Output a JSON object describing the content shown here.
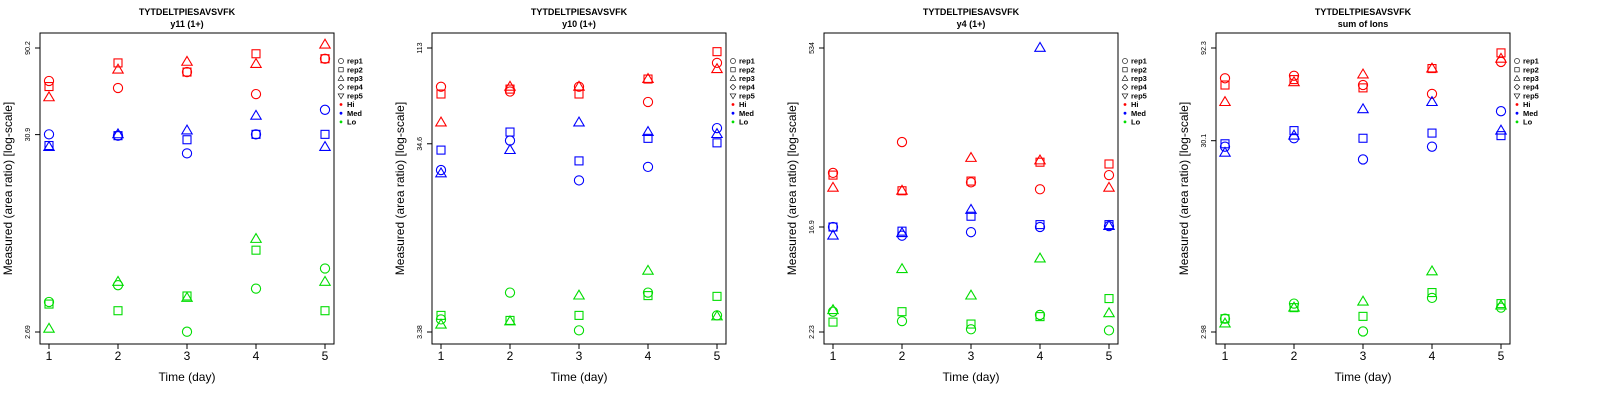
{
  "colors": {
    "Hi": "#ff0000",
    "Med": "#0000ff",
    "Lo": "#00dd00"
  },
  "legend": {
    "replicates": [
      {
        "label": "rep1",
        "shape": "circle"
      },
      {
        "label": "rep2",
        "shape": "square"
      },
      {
        "label": "rep3",
        "shape": "triangle-up"
      },
      {
        "label": "rep4",
        "shape": "diamond"
      },
      {
        "label": "rep5",
        "shape": "triangle-down"
      }
    ],
    "groups": [
      "Hi",
      "Med",
      "Lo"
    ]
  },
  "chart_data": [
    {
      "type": "scatter",
      "title": "TYTDELTPIESAVSVFK",
      "subtitle": "y11 (1+)",
      "xlabel": "Time (day)",
      "ylabel": "Measured (area ratio) [log-scale]",
      "y_scale": "log",
      "ylim": [
        2.69,
        90.2
      ],
      "yticks": [
        "2.69",
        "30.9",
        "90.2"
      ],
      "xticks": [
        1,
        2,
        3,
        4,
        5
      ],
      "legend_position": "right",
      "series": [
        {
          "name": "Hi",
          "shape": "circle",
          "points": [
            [
              1,
              60
            ],
            [
              2,
              55
            ],
            [
              3,
              67
            ],
            [
              4,
              51
            ],
            [
              5,
              79
            ]
          ]
        },
        {
          "name": "Hi",
          "shape": "square",
          "points": [
            [
              1,
              56
            ],
            [
              2,
              75
            ],
            [
              3,
              67
            ],
            [
              4,
              84
            ],
            [
              5,
              79
            ]
          ]
        },
        {
          "name": "Hi",
          "shape": "triangle-up",
          "points": [
            [
              1,
              49
            ],
            [
              2,
              69
            ],
            [
              3,
              76
            ],
            [
              4,
              74
            ],
            [
              5,
              94
            ]
          ]
        },
        {
          "name": "Med",
          "shape": "circle",
          "points": [
            [
              1,
              31
            ],
            [
              2,
              30.5
            ],
            [
              3,
              24.5
            ],
            [
              4,
              31
            ],
            [
              5,
              42
            ]
          ]
        },
        {
          "name": "Med",
          "shape": "square",
          "points": [
            [
              1,
              27
            ],
            [
              2,
              30.5
            ],
            [
              3,
              29
            ],
            [
              4,
              31
            ],
            [
              5,
              31
            ]
          ]
        },
        {
          "name": "Med",
          "shape": "triangle-up",
          "points": [
            [
              1,
              26.5
            ],
            [
              2,
              31
            ],
            [
              3,
              32.5
            ],
            [
              4,
              39
            ],
            [
              5,
              26.5
            ]
          ]
        },
        {
          "name": "Lo",
          "shape": "circle",
          "points": [
            [
              1,
              3.9
            ],
            [
              2,
              4.8
            ],
            [
              3,
              2.7
            ],
            [
              4,
              4.6
            ],
            [
              5,
              5.9
            ]
          ]
        },
        {
          "name": "Lo",
          "shape": "square",
          "points": [
            [
              1,
              3.8
            ],
            [
              2,
              3.5
            ],
            [
              3,
              4.2
            ],
            [
              4,
              7.4
            ],
            [
              5,
              3.5
            ]
          ]
        },
        {
          "name": "Lo",
          "shape": "triangle-up",
          "points": [
            [
              1,
              2.8
            ],
            [
              2,
              5.0
            ],
            [
              3,
              4.1
            ],
            [
              4,
              8.5
            ],
            [
              5,
              5.0
            ]
          ]
        }
      ]
    },
    {
      "type": "scatter",
      "title": "TYTDELTPIESAVSVFK",
      "subtitle": "y10 (1+)",
      "xlabel": "Time (day)",
      "ylabel": "Measured (area ratio) [log-scale]",
      "y_scale": "log",
      "ylim": [
        3.38,
        113
      ],
      "yticks": [
        "3.38",
        "34.6",
        "113"
      ],
      "xticks": [
        1,
        2,
        3,
        4,
        5
      ],
      "legend_position": "right",
      "series": [
        {
          "name": "Hi",
          "shape": "circle",
          "points": [
            [
              1,
              70
            ],
            [
              2,
              66
            ],
            [
              3,
              70
            ],
            [
              4,
              58
            ],
            [
              5,
              94
            ]
          ]
        },
        {
          "name": "Hi",
          "shape": "square",
          "points": [
            [
              1,
              64
            ],
            [
              2,
              68
            ],
            [
              3,
              64
            ],
            [
              4,
              77
            ],
            [
              5,
              108
            ]
          ]
        },
        {
          "name": "Hi",
          "shape": "triangle-up",
          "points": [
            [
              1,
              45
            ],
            [
              2,
              70
            ],
            [
              3,
              70
            ],
            [
              4,
              77
            ],
            [
              5,
              87
            ]
          ]
        },
        {
          "name": "Med",
          "shape": "circle",
          "points": [
            [
              1,
              25
            ],
            [
              2,
              36
            ],
            [
              3,
              22
            ],
            [
              4,
              26
            ],
            [
              5,
              42
            ]
          ]
        },
        {
          "name": "Med",
          "shape": "square",
          "points": [
            [
              1,
              32
            ],
            [
              2,
              40
            ],
            [
              3,
              28
            ],
            [
              4,
              37
            ],
            [
              5,
              35
            ]
          ]
        },
        {
          "name": "Med",
          "shape": "triangle-up",
          "points": [
            [
              1,
              24
            ],
            [
              2,
              32
            ],
            [
              3,
              45
            ],
            [
              4,
              40
            ],
            [
              5,
              39
            ]
          ]
        },
        {
          "name": "Lo",
          "shape": "circle",
          "points": [
            [
              1,
              3.95
            ],
            [
              2,
              5.5
            ],
            [
              3,
              3.45
            ],
            [
              4,
              5.5
            ],
            [
              5,
              4.15
            ]
          ]
        },
        {
          "name": "Lo",
          "shape": "square",
          "points": [
            [
              1,
              4.15
            ],
            [
              2,
              3.9
            ],
            [
              3,
              4.15
            ],
            [
              4,
              5.3
            ],
            [
              5,
              5.25
            ]
          ]
        },
        {
          "name": "Lo",
          "shape": "triangle-up",
          "points": [
            [
              1,
              3.7
            ],
            [
              2,
              3.85
            ],
            [
              3,
              5.3
            ],
            [
              4,
              7.2
            ],
            [
              5,
              4.1
            ]
          ]
        }
      ]
    },
    {
      "type": "scatter",
      "title": "TYTDELTPIESAVSVFK",
      "subtitle": "y4 (1+)",
      "xlabel": "Time (day)",
      "ylabel": "Measured (area ratio) [log-scale]",
      "y_scale": "log",
      "ylim": [
        2.23,
        534
      ],
      "yticks": [
        "2.23",
        "16.9",
        "534"
      ],
      "xticks": [
        1,
        2,
        3,
        4,
        5
      ],
      "legend_position": "right",
      "series": [
        {
          "name": "Hi",
          "shape": "circle",
          "points": [
            [
              1,
              48
            ],
            [
              2,
              87
            ],
            [
              3,
              40
            ],
            [
              4,
              35
            ],
            [
              5,
              46
            ]
          ]
        },
        {
          "name": "Hi",
          "shape": "square",
          "points": [
            [
              1,
              46
            ],
            [
              2,
              34
            ],
            [
              3,
              41
            ],
            [
              4,
              59
            ],
            [
              5,
              57
            ]
          ]
        },
        {
          "name": "Hi",
          "shape": "triangle-up",
          "points": [
            [
              1,
              36
            ],
            [
              2,
              34
            ],
            [
              3,
              64
            ],
            [
              4,
              61
            ],
            [
              5,
              36
            ]
          ]
        },
        {
          "name": "Med",
          "shape": "circle",
          "points": [
            [
              1,
              16.9
            ],
            [
              2,
              14.3
            ],
            [
              3,
              15.3
            ],
            [
              4,
              16.9
            ],
            [
              5,
              17.2
            ]
          ]
        },
        {
          "name": "Med",
          "shape": "square",
          "points": [
            [
              1,
              16.9
            ],
            [
              2,
              15.6
            ],
            [
              3,
              20.8
            ],
            [
              4,
              17.7
            ],
            [
              5,
              17.7
            ]
          ]
        },
        {
          "name": "Med",
          "shape": "triangle-up",
          "points": [
            [
              1,
              14.3
            ],
            [
              2,
              15.0
            ],
            [
              3,
              23.5
            ],
            [
              4,
              535
            ],
            [
              5,
              17.2
            ]
          ]
        },
        {
          "name": "Lo",
          "shape": "circle",
          "points": [
            [
              1,
              3.3
            ],
            [
              2,
              2.75
            ],
            [
              3,
              2.35
            ],
            [
              4,
              3.1
            ],
            [
              5,
              2.3
            ]
          ]
        },
        {
          "name": "Lo",
          "shape": "square",
          "points": [
            [
              1,
              2.7
            ],
            [
              2,
              3.3
            ],
            [
              3,
              2.6
            ],
            [
              4,
              3.0
            ],
            [
              5,
              4.25
            ]
          ]
        },
        {
          "name": "Lo",
          "shape": "triangle-up",
          "points": [
            [
              1,
              3.4
            ],
            [
              2,
              7.5
            ],
            [
              3,
              4.5
            ],
            [
              4,
              9.2
            ],
            [
              5,
              3.2
            ]
          ]
        }
      ]
    },
    {
      "type": "scatter",
      "title": "TYTDELTPIESAVSVFK",
      "subtitle": "sum of Ions",
      "xlabel": "Time (day)",
      "ylabel": "Measured (area ratio) [log-scale]",
      "y_scale": "log",
      "ylim": [
        2.98,
        92.3
      ],
      "yticks": [
        "2.98",
        "30.1",
        "92.3"
      ],
      "xticks": [
        1,
        2,
        3,
        4,
        5
      ],
      "legend_position": "right",
      "series": [
        {
          "name": "Hi",
          "shape": "circle",
          "points": [
            [
              1,
              64
            ],
            [
              2,
              66
            ],
            [
              3,
              59
            ],
            [
              4,
              53
            ],
            [
              5,
              78
            ]
          ]
        },
        {
          "name": "Hi",
          "shape": "square",
          "points": [
            [
              1,
              59
            ],
            [
              2,
              63
            ],
            [
              3,
              57
            ],
            [
              4,
              72
            ],
            [
              5,
              87
            ]
          ]
        },
        {
          "name": "Hi",
          "shape": "triangle-up",
          "points": [
            [
              1,
              48
            ],
            [
              2,
              61
            ],
            [
              3,
              67
            ],
            [
              4,
              72
            ],
            [
              5,
              81
            ]
          ]
        },
        {
          "name": "Med",
          "shape": "circle",
          "points": [
            [
              1,
              28
            ],
            [
              2,
              31
            ],
            [
              3,
              24
            ],
            [
              4,
              28
            ],
            [
              5,
              43
            ]
          ]
        },
        {
          "name": "Med",
          "shape": "square",
          "points": [
            [
              1,
              29
            ],
            [
              2,
              34
            ],
            [
              3,
              31
            ],
            [
              4,
              33
            ],
            [
              5,
              32
            ]
          ]
        },
        {
          "name": "Med",
          "shape": "triangle-up",
          "points": [
            [
              1,
              26
            ],
            [
              2,
              32
            ],
            [
              3,
              44
            ],
            [
              4,
              48
            ],
            [
              5,
              34
            ]
          ]
        },
        {
          "name": "Lo",
          "shape": "circle",
          "points": [
            [
              1,
              3.5
            ],
            [
              2,
              4.2
            ],
            [
              3,
              3.0
            ],
            [
              4,
              4.5
            ],
            [
              5,
              4.0
            ]
          ]
        },
        {
          "name": "Lo",
          "shape": "square",
          "points": [
            [
              1,
              3.5
            ],
            [
              2,
              4.0
            ],
            [
              3,
              3.6
            ],
            [
              4,
              4.8
            ],
            [
              5,
              4.2
            ]
          ]
        },
        {
          "name": "Lo",
          "shape": "triangle-up",
          "points": [
            [
              1,
              3.3
            ],
            [
              2,
              4.0
            ],
            [
              3,
              4.3
            ],
            [
              4,
              6.2
            ],
            [
              5,
              4.1
            ]
          ]
        }
      ]
    }
  ]
}
